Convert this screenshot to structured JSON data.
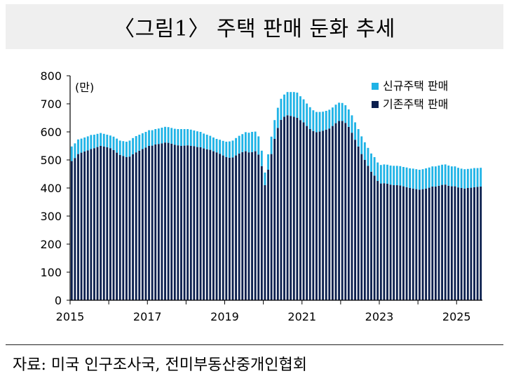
{
  "title": "〈그림1〉 주택 판매 둔화 추세",
  "source": "자료: 미국 인구조사국,  전미부동산중개인협회",
  "colors": {
    "new_home": "#1fb3e6",
    "existing_home": "#0b1f4e"
  },
  "chart_data": {
    "type": "bar",
    "stacked": true,
    "unit_label": "(만)",
    "ylim": [
      0,
      800
    ],
    "yticks": [
      0,
      100,
      200,
      300,
      400,
      500,
      600,
      700,
      800
    ],
    "xticks": [
      "2015",
      "2017",
      "2019",
      "2021",
      "2023",
      "2025"
    ],
    "x_start": "2015-01",
    "legend_position": "top-right",
    "series": [
      {
        "name": "신규주택 판매",
        "values": [
          52,
          52,
          52,
          50,
          50,
          50,
          50,
          48,
          47,
          46,
          45,
          45,
          45,
          48,
          50,
          51,
          53,
          55,
          57,
          58,
          58,
          57,
          56,
          56,
          56,
          55,
          55,
          55,
          56,
          56,
          56,
          56,
          57,
          58,
          60,
          59,
          58,
          58,
          56,
          56,
          55,
          53,
          52,
          50,
          49,
          48,
          50,
          52,
          55,
          58,
          60,
          62,
          63,
          64,
          68,
          70,
          72,
          70,
          65,
          55,
          45,
          55,
          62,
          67,
          72,
          75,
          79,
          83,
          85,
          88,
          90,
          85,
          82,
          80,
          78,
          74,
          72,
          70,
          68,
          67,
          67,
          66,
          66,
          65,
          64,
          63,
          62,
          62,
          62,
          62,
          63,
          63,
          64,
          65,
          66,
          66,
          66,
          67,
          68,
          68,
          69,
          69,
          69,
          69,
          70,
          70,
          71,
          71,
          71,
          71,
          72,
          72,
          72,
          72,
          72,
          72,
          72,
          72,
          71,
          71,
          70,
          69,
          69,
          68,
          68,
          68,
          67,
          67
        ]
      },
      {
        "name": "기존주택 판매",
        "values": [
          496,
          507,
          521,
          526,
          530,
          534,
          539,
          542,
          546,
          550,
          548,
          545,
          542,
          535,
          526,
          518,
          514,
          510,
          512,
          520,
          527,
          533,
          539,
          544,
          550,
          551,
          555,
          557,
          559,
          562,
          561,
          558,
          554,
          552,
          550,
          551,
          552,
          550,
          549,
          546,
          545,
          541,
          538,
          536,
          531,
          527,
          522,
          516,
          510,
          508,
          509,
          516,
          523,
          528,
          531,
          527,
          528,
          531,
          519,
          478,
          410,
          465,
          521,
          575,
          614,
          643,
          654,
          659,
          657,
          654,
          650,
          642,
          634,
          621,
          610,
          603,
          599,
          601,
          604,
          608,
          612,
          621,
          631,
          639,
          639,
          632,
          618,
          597,
          572,
          548,
          521,
          500,
          479,
          458,
          444,
          425,
          416,
          417,
          415,
          412,
          410,
          410,
          409,
          406,
          403,
          400,
          398,
          396,
          394,
          396,
          398,
          401,
          405,
          405,
          408,
          411,
          412,
          408,
          406,
          406,
          402,
          400,
          398,
          400,
          401,
          403,
          404,
          405
        ]
      }
    ]
  }
}
